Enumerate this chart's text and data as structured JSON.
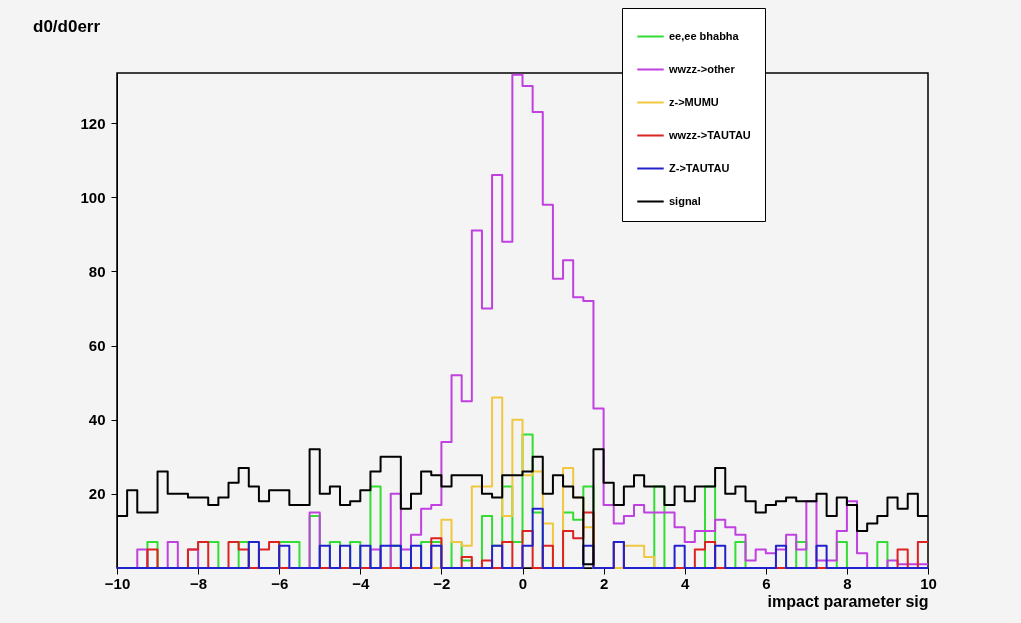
{
  "chart_data": {
    "type": "histogram",
    "title": "d0/d0err",
    "xlabel": "impact parameter sig",
    "bins": [
      -10,
      -9.75,
      -9.5,
      -9.25,
      -9,
      -8.75,
      -8.5,
      -8.25,
      -8,
      -7.75,
      -7.5,
      -7.25,
      -7,
      -6.75,
      -6.5,
      -6.25,
      -6,
      -5.75,
      -5.5,
      -5.25,
      -5,
      -4.75,
      -4.5,
      -4.25,
      -4,
      -3.75,
      -3.5,
      -3.25,
      -3,
      -2.75,
      -2.5,
      -2.25,
      -2,
      -1.75,
      -1.5,
      -1.25,
      -1,
      -0.75,
      -0.5,
      -0.25,
      0,
      0.25,
      0.5,
      0.75,
      1,
      1.25,
      1.5,
      1.75,
      2,
      2.25,
      2.5,
      2.75,
      3,
      3.25,
      3.5,
      3.75,
      4,
      4.25,
      4.5,
      4.75,
      5,
      5.25,
      5.5,
      5.75,
      6,
      6.25,
      6.5,
      6.75,
      7,
      7.25,
      7.5,
      7.75,
      8,
      8.25,
      8.5,
      8.75,
      9,
      9.25,
      9.5,
      9.75,
      10
    ],
    "series": [
      {
        "name": "ee,ee bhabha",
        "color": "#33dd33",
        "values": [
          0,
          0,
          0,
          7,
          0,
          0,
          0,
          0,
          7,
          7,
          0,
          0,
          7,
          0,
          0,
          0,
          7,
          7,
          0,
          14,
          0,
          7,
          0,
          7,
          0,
          22,
          0,
          6,
          0,
          0,
          7,
          7,
          0,
          7,
          2,
          0,
          14,
          6,
          22,
          7,
          36,
          15,
          0,
          0,
          15,
          13,
          22,
          0,
          0,
          0,
          0,
          0,
          0,
          22,
          0,
          0,
          0,
          0,
          22,
          0,
          0,
          7,
          0,
          0,
          0,
          0,
          0,
          7,
          0,
          0,
          0,
          7,
          0,
          0,
          0,
          7,
          0,
          0,
          0,
          0
        ]
      },
      {
        "name": "wwzz->other",
        "color": "#c040e0",
        "values": [
          0,
          0,
          5,
          0,
          0,
          7,
          0,
          5,
          0,
          0,
          0,
          0,
          0,
          0,
          0,
          0,
          0,
          0,
          0,
          15,
          0,
          0,
          0,
          0,
          0,
          5,
          0,
          20,
          5,
          9,
          16,
          17,
          34,
          52,
          45,
          91,
          70,
          106,
          88,
          133,
          130,
          123,
          98,
          78,
          83,
          73,
          72,
          43,
          17,
          12,
          14,
          17,
          15,
          15,
          15,
          11,
          7,
          10,
          10,
          13,
          11,
          9,
          2,
          5,
          4,
          5,
          9,
          5,
          18,
          2,
          2,
          10,
          18,
          4,
          0,
          0,
          2,
          1,
          1,
          1
        ]
      },
      {
        "name": "z->MUMU",
        "color": "#f0c840",
        "values": [
          0,
          0,
          0,
          0,
          0,
          0,
          0,
          0,
          0,
          0,
          0,
          0,
          0,
          0,
          0,
          0,
          0,
          0,
          0,
          0,
          0,
          0,
          0,
          0,
          0,
          0,
          0,
          0,
          0,
          0,
          0,
          0,
          13,
          7,
          6,
          22,
          22,
          46,
          14,
          40,
          25,
          26,
          12,
          0,
          27,
          19,
          11,
          0,
          0,
          0,
          6,
          6,
          3,
          0,
          0,
          0,
          0,
          0,
          0,
          0,
          0,
          0,
          0,
          0,
          0,
          0,
          0,
          0,
          0,
          0,
          0,
          0,
          0,
          0,
          0,
          0,
          0,
          0,
          0,
          0
        ]
      },
      {
        "name": "wwzz->TAUTAU",
        "color": "#dd2222",
        "values": [
          0,
          0,
          0,
          5,
          0,
          0,
          0,
          5,
          7,
          0,
          0,
          7,
          5,
          0,
          5,
          7,
          0,
          0,
          0,
          0,
          0,
          0,
          0,
          0,
          0,
          0,
          0,
          0,
          0,
          0,
          0,
          8,
          0,
          0,
          3,
          0,
          2,
          0,
          7,
          0,
          10,
          0,
          6,
          0,
          10,
          8,
          15,
          0,
          0,
          7,
          0,
          0,
          0,
          0,
          0,
          0,
          0,
          5,
          7,
          0,
          0,
          0,
          0,
          0,
          0,
          0,
          0,
          0,
          0,
          0,
          0,
          0,
          0,
          0,
          0,
          0,
          0,
          5,
          0,
          7
        ]
      },
      {
        "name": "Z->TAUTAU",
        "color": "#2222cc",
        "values": [
          0,
          0,
          0,
          0,
          0,
          0,
          0,
          0,
          0,
          0,
          0,
          0,
          0,
          7,
          0,
          0,
          6,
          0,
          0,
          0,
          6,
          0,
          6,
          0,
          6,
          0,
          6,
          6,
          0,
          6,
          0,
          6,
          0,
          0,
          0,
          0,
          0,
          6,
          0,
          0,
          6,
          16,
          0,
          0,
          0,
          0,
          6,
          0,
          0,
          7,
          0,
          0,
          0,
          0,
          0,
          6,
          0,
          0,
          0,
          6,
          0,
          0,
          0,
          0,
          0,
          6,
          0,
          0,
          0,
          6,
          0,
          0,
          0,
          0,
          0,
          0,
          0,
          0,
          0,
          0
        ]
      },
      {
        "name": "signal",
        "color": "#000000",
        "values": [
          14,
          21,
          15,
          15,
          26,
          20,
          20,
          19,
          19,
          17,
          19,
          23,
          27,
          22,
          18,
          21,
          21,
          17,
          17,
          32,
          20,
          22,
          17,
          18,
          21,
          26,
          30,
          30,
          16,
          20,
          26,
          25,
          22,
          25,
          25,
          25,
          20,
          19,
          25,
          25,
          26,
          30,
          20,
          25,
          22,
          19,
          1,
          32,
          23,
          17,
          22,
          25,
          22,
          22,
          17,
          22,
          18,
          22,
          22,
          27,
          20,
          22,
          18,
          15,
          17,
          18,
          19,
          18,
          18,
          20,
          14,
          19,
          17,
          10,
          12,
          14,
          19,
          16,
          20,
          14
        ]
      }
    ],
    "xlim": [
      -10,
      10
    ],
    "ylim": [
      0,
      133.5
    ],
    "xticks": [
      -10,
      -8,
      -6,
      -4,
      -2,
      0,
      2,
      4,
      6,
      8,
      10
    ],
    "yticks": [
      20,
      40,
      60,
      80,
      100,
      120
    ],
    "legend": "top right",
    "grid": false
  }
}
